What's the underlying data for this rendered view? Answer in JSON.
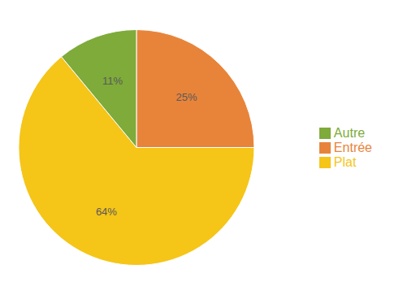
{
  "chart_data": {
    "type": "pie",
    "categories": [
      "Entrée",
      "Plat",
      "Autre"
    ],
    "values": [
      25,
      64,
      11
    ],
    "value_labels": [
      "25%",
      "64%",
      "11%"
    ],
    "colors": [
      "#E8843A",
      "#F5C518",
      "#7EAB3A"
    ],
    "data_labels": true,
    "legend": "right"
  }
}
